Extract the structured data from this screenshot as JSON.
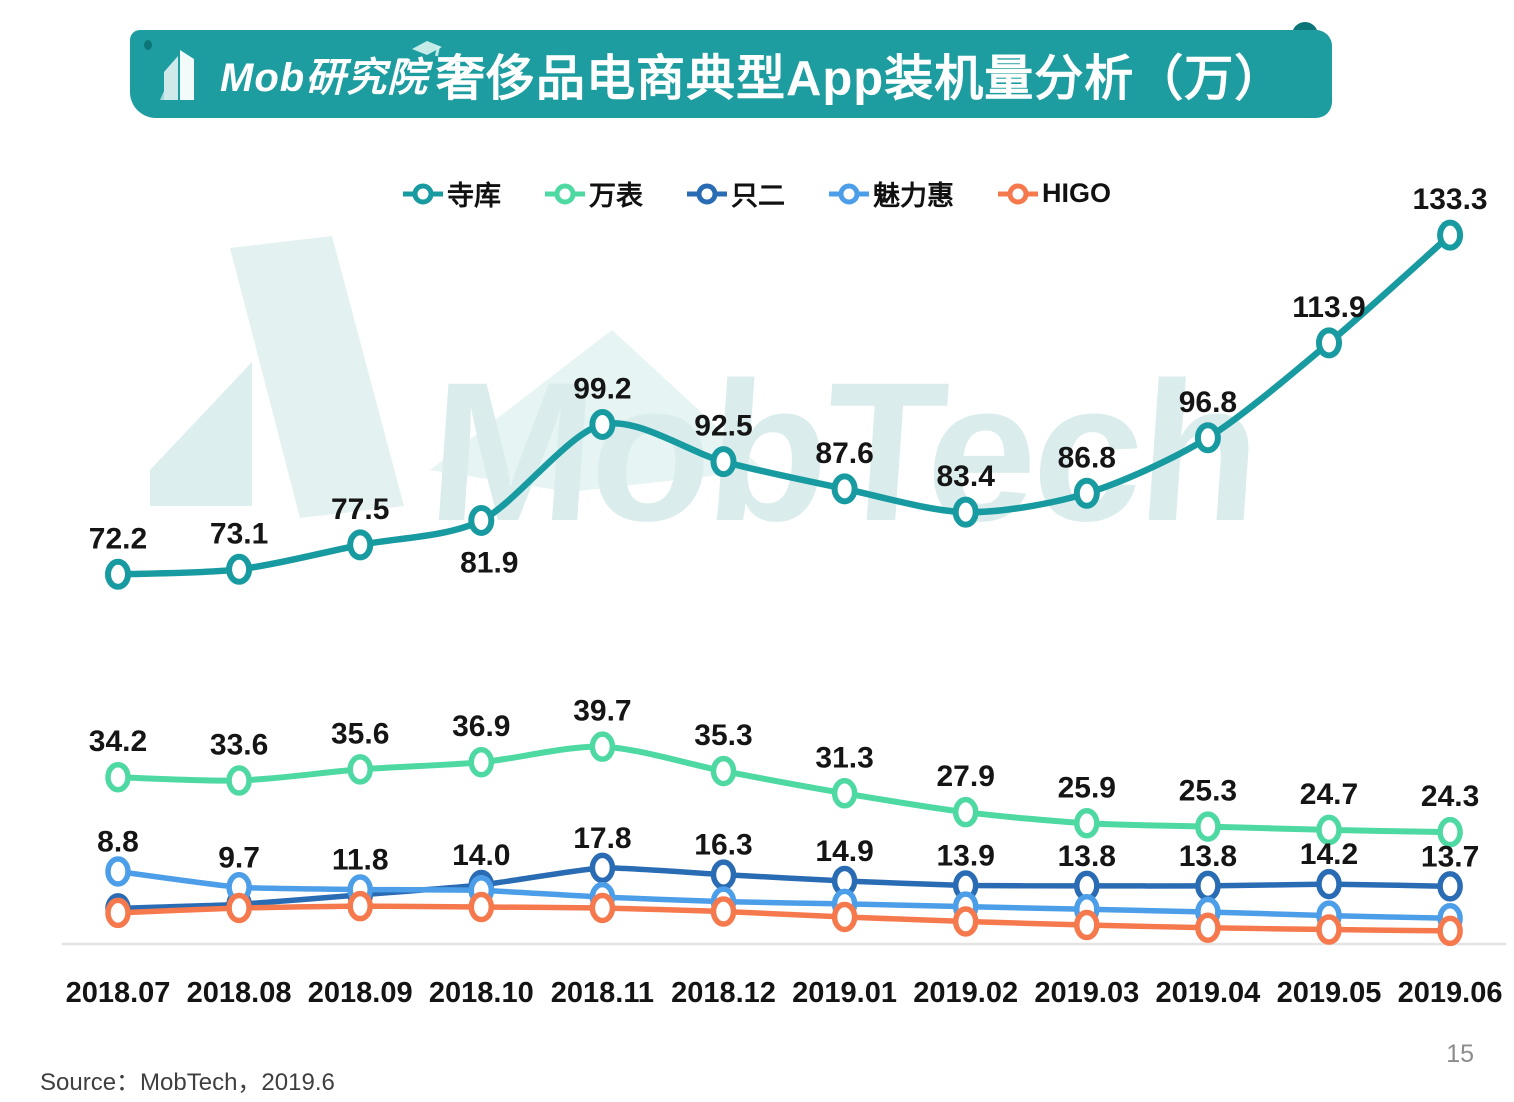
{
  "banner": {
    "logo_text": "Mob研究院",
    "title": "奢侈品电商典型App装机量分析（万）"
  },
  "watermark": {
    "text": "MobTech"
  },
  "chart_data": {
    "type": "line",
    "title": "奢侈品电商典型App装机量分析（万）",
    "unit": "万",
    "grid": false,
    "legend_position": "top",
    "categories": [
      "2018.07",
      "2018.08",
      "2018.09",
      "2018.10",
      "2018.11",
      "2018.12",
      "2019.01",
      "2019.02",
      "2019.03",
      "2019.04",
      "2019.05",
      "2019.06"
    ],
    "series": [
      {
        "name": "寺库",
        "color": "#189AA1",
        "values": [
          72.2,
          73.1,
          77.5,
          81.9,
          99.2,
          92.5,
          87.6,
          83.4,
          86.8,
          96.8,
          113.9,
          133.3
        ],
        "labels_shown": true,
        "estimated": false
      },
      {
        "name": "万表",
        "color": "#4ED9A3",
        "values": [
          34.2,
          33.6,
          35.6,
          36.9,
          39.7,
          35.3,
          31.3,
          27.9,
          25.9,
          25.3,
          24.7,
          24.3
        ],
        "labels_shown": true,
        "estimated": false
      },
      {
        "name": "只二",
        "color": "#2A6CB4",
        "values": [
          8.8,
          9.7,
          11.8,
          14.0,
          17.8,
          16.3,
          14.9,
          13.9,
          13.8,
          13.8,
          14.2,
          13.7
        ],
        "labels_shown": true,
        "estimated": false
      },
      {
        "name": "魅力惠",
        "color": "#4C9EE8",
        "values": [
          17.0,
          13.5,
          13.0,
          12.8,
          11.3,
          10.3,
          9.8,
          9.2,
          8.6,
          8.0,
          7.2,
          6.6
        ],
        "labels_shown": false,
        "estimated": true
      },
      {
        "name": "HIGO",
        "color": "#F5794D",
        "values": [
          7.8,
          8.9,
          9.3,
          9.1,
          8.9,
          8.1,
          6.9,
          5.9,
          5.1,
          4.5,
          4.1,
          3.8
        ],
        "labels_shown": false,
        "estimated": true
      }
    ]
  },
  "footer": {
    "source": "Source：MobTech，2019.6",
    "page_number": "15"
  }
}
